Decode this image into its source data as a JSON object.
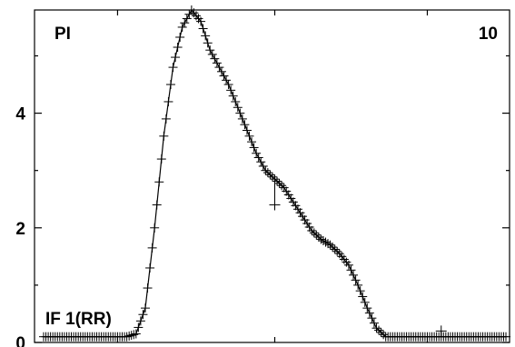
{
  "chart_data": {
    "type": "line",
    "title": "",
    "xlabel": "",
    "ylabel": "",
    "annotations": {
      "top_left": "PI",
      "top_right": "10",
      "bottom_left": "IF 1(RR)"
    },
    "x": [
      0,
      0.02,
      0.04,
      0.06,
      0.08,
      0.1,
      0.12,
      0.14,
      0.16,
      0.18,
      0.2,
      0.22,
      0.24,
      0.26,
      0.28,
      0.3,
      0.32,
      0.34,
      0.36,
      0.38,
      0.4,
      0.42,
      0.44,
      0.46,
      0.48,
      0.5,
      0.52,
      0.54,
      0.56,
      0.58,
      0.6,
      0.62,
      0.64,
      0.66,
      0.68,
      0.7,
      0.72,
      0.74,
      0.76,
      0.78,
      0.8,
      0.82,
      0.84,
      0.86,
      0.88,
      0.9,
      0.92,
      0.94,
      0.96,
      0.98,
      1.0
    ],
    "series": [
      {
        "values": [
          0.1,
          0.1,
          0.1,
          0.1,
          0.1,
          0.1,
          0.1,
          0.1,
          0.1,
          0.1,
          0.15,
          0.6,
          2.0,
          3.6,
          4.8,
          5.5,
          5.8,
          5.6,
          5.1,
          4.8,
          4.5,
          4.1,
          3.7,
          3.3,
          3.0,
          2.85,
          2.7,
          2.45,
          2.2,
          1.95,
          1.8,
          1.7,
          1.55,
          1.35,
          1.0,
          0.6,
          0.25,
          0.1,
          0.1,
          0.1,
          0.1,
          0.1,
          0.1,
          0.1,
          0.1,
          0.1,
          0.1,
          0.1,
          0.1,
          0.1,
          0.1
        ]
      }
    ],
    "outliers": [
      {
        "x": 0.5,
        "y": 2.4
      },
      {
        "x": 0.86,
        "y": 0.2
      }
    ],
    "xlim": [
      0,
      1
    ],
    "ylim": [
      0,
      5.8
    ],
    "y_ticks": [
      0,
      2,
      4
    ],
    "y_tick_labels": [
      "0",
      "2",
      "4"
    ],
    "y_minor_ticks": [
      1,
      3,
      5
    ],
    "x_ticks": [
      0.16,
      0.5,
      0.83
    ],
    "grid": false,
    "legend": "none"
  }
}
